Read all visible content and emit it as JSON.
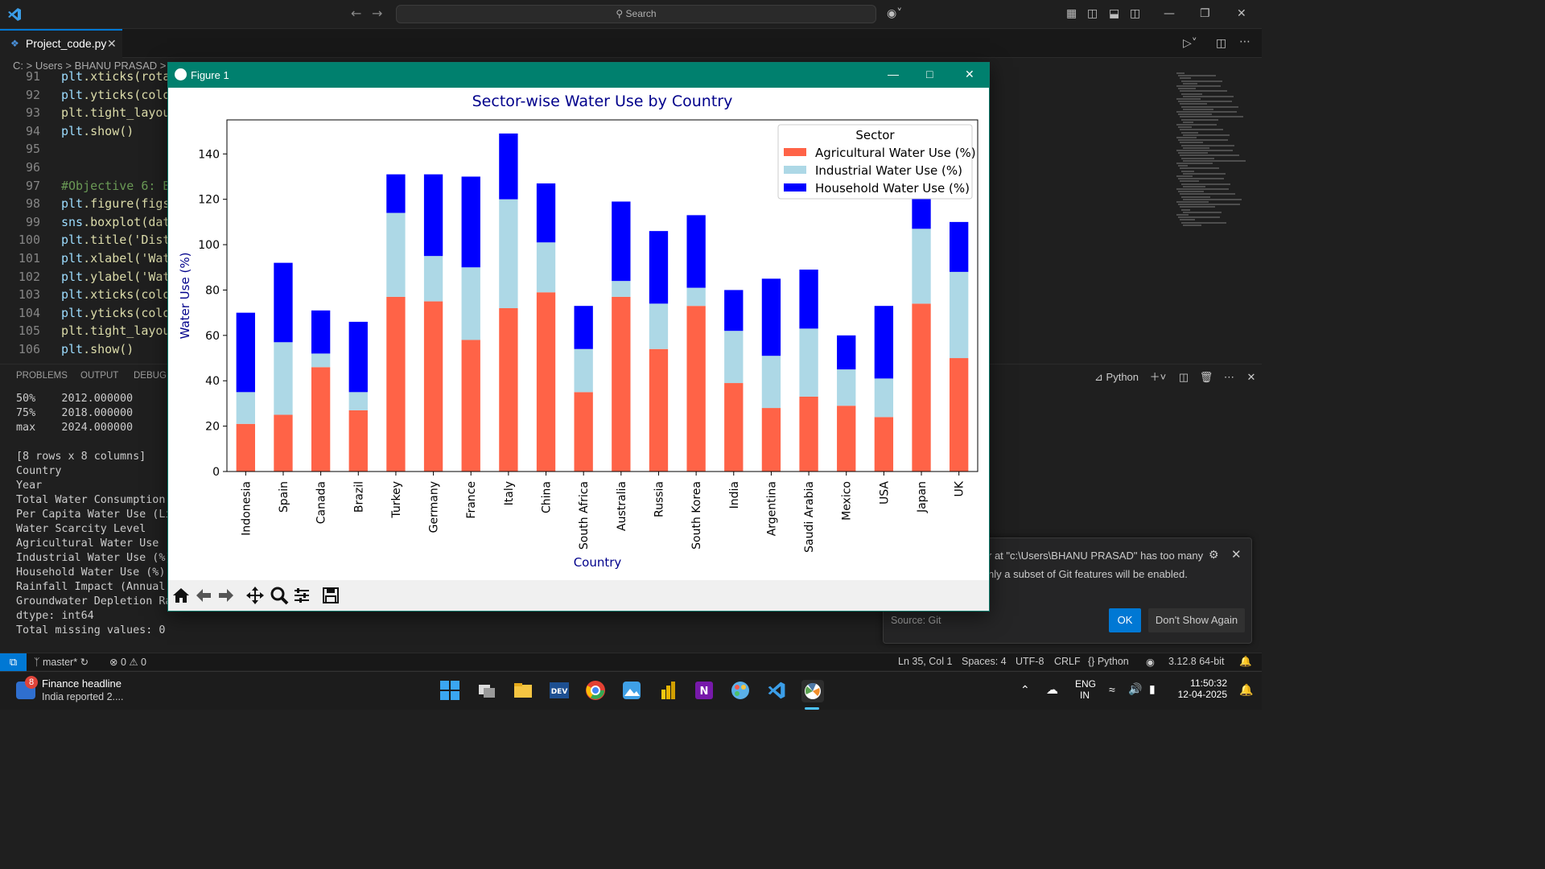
{
  "vscode": {
    "search_label": "Search",
    "tab_label": "Project_code.py",
    "breadcrumb": "C: > Users > BHANU PRASAD > P"
  },
  "code_lines": [
    {
      "num": "91",
      "text": "plt.xticks(rota"
    },
    {
      "num": "92",
      "text": "plt.yticks(colo"
    },
    {
      "num": "93",
      "text": "plt.tight_layou"
    },
    {
      "num": "94",
      "text": "plt.show()"
    },
    {
      "num": "95",
      "text": ""
    },
    {
      "num": "96",
      "text": ""
    },
    {
      "num": "97",
      "text": "#Objective 6: B"
    },
    {
      "num": "98",
      "text": "plt.figure(figs"
    },
    {
      "num": "99",
      "text": "sns.boxplot(dat"
    },
    {
      "num": "100",
      "text": "plt.title('Dist"
    },
    {
      "num": "101",
      "text": "plt.xlabel('Wat"
    },
    {
      "num": "102",
      "text": "plt.ylabel('Wat"
    },
    {
      "num": "103",
      "text": "plt.xticks(colo"
    },
    {
      "num": "104",
      "text": "plt.yticks(colo"
    },
    {
      "num": "105",
      "text": "plt.tight_layou"
    },
    {
      "num": "106",
      "text": "plt.show()"
    }
  ],
  "panel": {
    "tabs": [
      "PROBLEMS",
      "OUTPUT",
      "DEBUG C"
    ],
    "terminal_name": "Python",
    "terminal_lines": [
      "50%    2012.000000",
      "75%    2018.000000",
      "max    2024.000000",
      "",
      "[8 rows x 8 columns]",
      "Country",
      "Year",
      "Total Water Consumption (B",
      "Per Capita Water Use (Lite",
      "Water Scarcity Level",
      "Agricultural Water Use (%)",
      "Industrial Water Use (%)",
      "Household Water Use (%)",
      "Rainfall Impact (Annual Pr",
      "Groundwater Depletion Rate",
      "dtype: int64",
      "Total missing values: 0"
    ]
  },
  "notification": {
    "line1": "r at \"c:\\Users\\BHANU PRASAD\" has too many",
    "line2": "nly a subset of Git features will be enabled.",
    "source": "Source: Git",
    "ok_label": "OK",
    "dont_show_label": "Don't Show Again"
  },
  "statusbar": {
    "branch": "master*",
    "problems": "⊗ 0 ⚠ 0",
    "position": "Ln 35, Col 1",
    "spaces": "Spaces: 4",
    "encoding": "UTF-8",
    "eol": "CRLF",
    "language": "{} Python",
    "interpreter": "3.12.8 64-bit"
  },
  "taskbar": {
    "news_badge": "8",
    "news_title": "Finance headline",
    "news_sub": "India reported 2....",
    "lang1": "ENG",
    "lang2": "IN",
    "time": "11:50:32",
    "date": "12-04-2025"
  },
  "figure": {
    "window_title": "Figure 1"
  },
  "colors": {
    "agricultural": "#ff6347",
    "industrial": "#add8e6",
    "household": "#0000ff",
    "title_text": "#00008b"
  },
  "chart_data": {
    "type": "bar",
    "stacked": true,
    "title": "Sector-wise Water Use by Country",
    "xlabel": "Country",
    "ylabel": "Water Use (%)",
    "legend_title": "Sector",
    "legend_position": "top-right",
    "ylim": [
      0,
      155
    ],
    "yticks": [
      0,
      20,
      40,
      60,
      80,
      100,
      120,
      140
    ],
    "categories": [
      "Indonesia",
      "Spain",
      "Canada",
      "Brazil",
      "Turkey",
      "Germany",
      "France",
      "Italy",
      "China",
      "South Africa",
      "Australia",
      "Russia",
      "South Korea",
      "India",
      "Argentina",
      "Saudi Arabia",
      "Mexico",
      "USA",
      "Japan",
      "UK"
    ],
    "series": [
      {
        "name": "Agricultural Water Use (%)",
        "values": [
          21,
          25,
          46,
          27,
          77,
          75,
          58,
          72,
          79,
          35,
          77,
          54,
          73,
          39,
          28,
          33,
          29,
          24,
          74,
          50
        ]
      },
      {
        "name": "Industrial Water Use (%)",
        "values": [
          14,
          32,
          6,
          8,
          37,
          20,
          32,
          48,
          22,
          19,
          7,
          20,
          8,
          23,
          23,
          30,
          16,
          17,
          33,
          38
        ]
      },
      {
        "name": "Household Water Use (%)",
        "values": [
          35,
          35,
          19,
          31,
          17,
          36,
          40,
          29,
          26,
          19,
          35,
          32,
          32,
          18,
          34,
          26,
          15,
          32,
          16,
          22
        ]
      }
    ]
  }
}
